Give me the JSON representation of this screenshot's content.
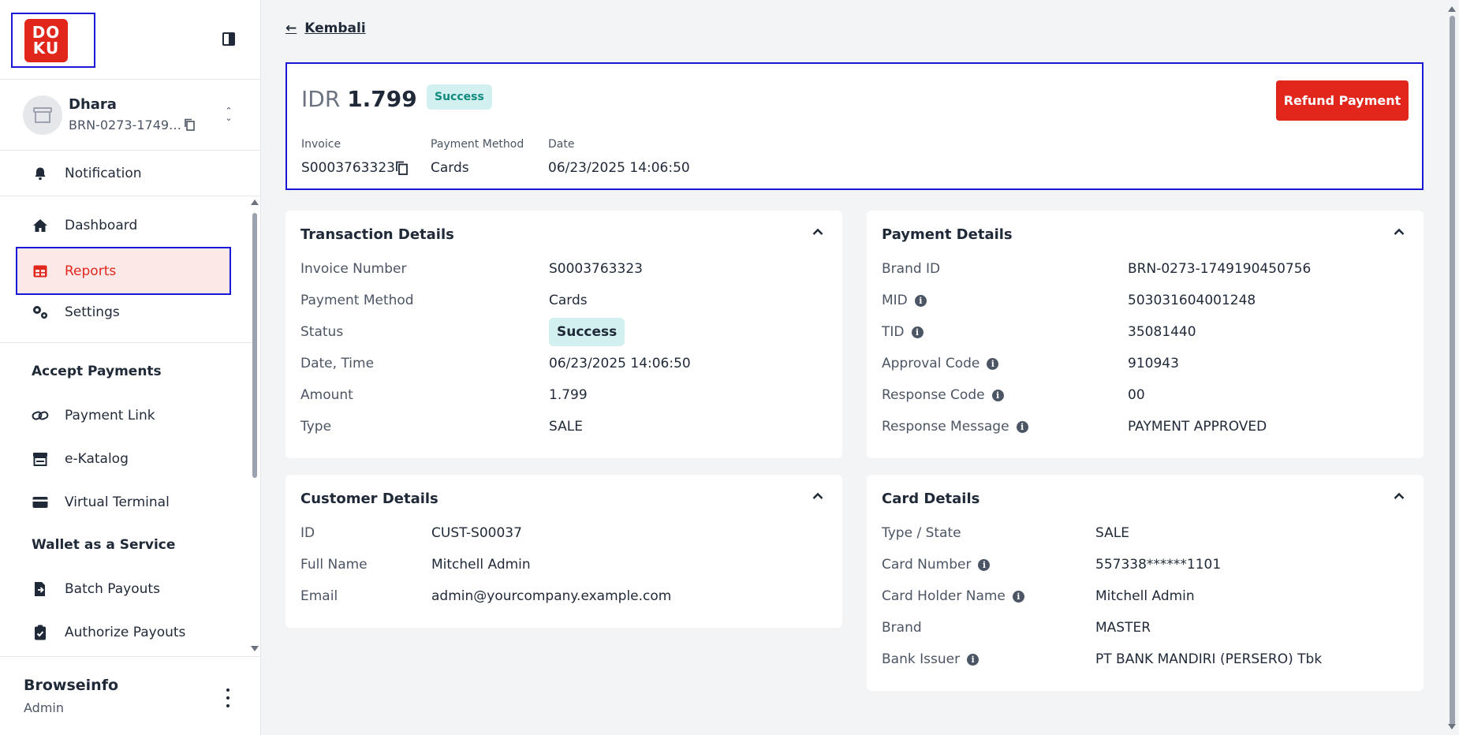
{
  "brand": {
    "logo_text": "DOKU",
    "accent": "#e1261c",
    "highlight": "#1a17d6"
  },
  "user": {
    "name": "Dhara",
    "brand_id": "BRN-0273-1749190450756"
  },
  "sidebar": {
    "notification": "Notification",
    "items": [
      {
        "label": "Dashboard",
        "icon": "home-icon"
      },
      {
        "label": "Reports",
        "icon": "table-icon",
        "active": true
      },
      {
        "label": "Settings",
        "icon": "gears-icon"
      }
    ],
    "accept_payments": {
      "title": "Accept Payments",
      "items": [
        {
          "label": "Payment Link",
          "icon": "link-icon"
        },
        {
          "label": "e-Katalog",
          "icon": "store-icon"
        },
        {
          "label": "Virtual Terminal",
          "icon": "credit-card-icon"
        }
      ]
    },
    "wallet": {
      "title": "Wallet as a Service",
      "items": [
        {
          "label": "Batch Payouts",
          "icon": "file-export-icon"
        },
        {
          "label": "Authorize Payouts",
          "icon": "clipboard-check-icon"
        }
      ]
    }
  },
  "footer": {
    "company": "Browseinfo",
    "role": "Admin"
  },
  "header": {
    "back_label": "Kembali"
  },
  "summary": {
    "currency": "IDR",
    "amount": "1.799",
    "status": "Success",
    "refund_label": "Refund Payment",
    "invoice_label": "Invoice",
    "invoice": "S0003763323",
    "method_label": "Payment Method",
    "method": "Cards",
    "date_label": "Date",
    "date": "06/23/2025 14:06:50"
  },
  "transaction": {
    "title": "Transaction Details",
    "rows": [
      {
        "label": "Invoice Number",
        "value": "S0003763323"
      },
      {
        "label": "Payment Method",
        "value": "Cards"
      },
      {
        "label": "Status",
        "value": "Success"
      },
      {
        "label": "Date, Time",
        "value": "06/23/2025 14:06:50"
      },
      {
        "label": "Amount",
        "value": "1.799"
      },
      {
        "label": "Type",
        "value": "SALE"
      }
    ]
  },
  "payment": {
    "title": "Payment Details",
    "rows": [
      {
        "label": "Brand ID",
        "value": "BRN-0273-1749190450756"
      },
      {
        "label": "MID",
        "value": "503031604001248"
      },
      {
        "label": "TID",
        "value": "35081440"
      },
      {
        "label": "Approval Code",
        "value": "910943"
      },
      {
        "label": "Response Code",
        "value": "00"
      },
      {
        "label": "Response Message",
        "value": "PAYMENT APPROVED"
      }
    ]
  },
  "customer": {
    "title": "Customer Details",
    "rows": [
      {
        "label": "ID",
        "value": "CUST-S00037"
      },
      {
        "label": "Full Name",
        "value": "Mitchell Admin"
      },
      {
        "label": "Email",
        "value": "admin@yourcompany.example.com"
      }
    ]
  },
  "card": {
    "title": "Card Details",
    "rows": [
      {
        "label": "Type / State",
        "value": "SALE"
      },
      {
        "label": "Card Number",
        "value": "557338******1101"
      },
      {
        "label": "Card Holder Name",
        "value": "Mitchell Admin"
      },
      {
        "label": "Brand",
        "value": "MASTER"
      },
      {
        "label": "Bank Issuer",
        "value": "PT BANK MANDIRI (PERSERO) Tbk"
      }
    ]
  }
}
